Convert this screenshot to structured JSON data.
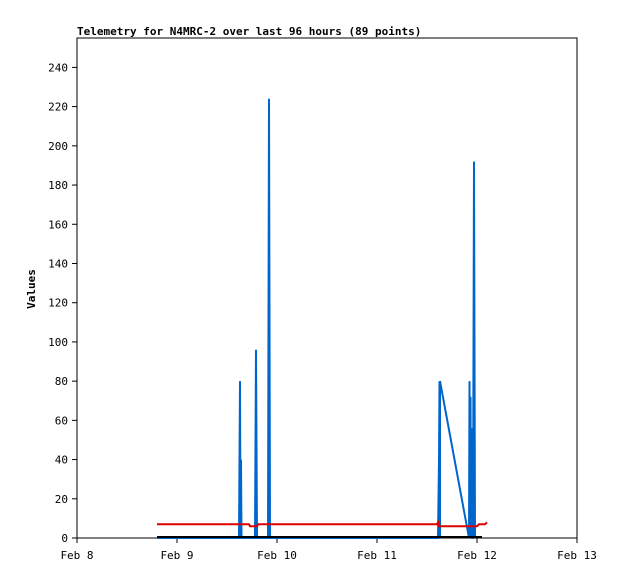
{
  "chart_data": {
    "type": "line",
    "title": "Telemetry for N4MRC-2 over last 96 hours (89 points)",
    "xlabel": "",
    "ylabel": "Values",
    "xlim": [
      "Feb 8",
      "Feb 13"
    ],
    "ylim": [
      0,
      255
    ],
    "x_ticks": [
      "Feb 8",
      "Feb 9",
      "Feb 10",
      "Feb 11",
      "Feb 12",
      "Feb 13"
    ],
    "y_ticks": [
      0,
      20,
      40,
      60,
      80,
      100,
      120,
      140,
      160,
      180,
      200,
      220,
      240
    ],
    "grid": false,
    "legend": "none",
    "series": [
      {
        "color": "#0066cc",
        "points": [
          [
            8.8,
            0
          ],
          [
            9.62,
            0
          ],
          [
            9.63,
            80
          ],
          [
            9.635,
            0
          ],
          [
            9.64,
            40
          ],
          [
            9.645,
            0
          ],
          [
            9.78,
            0
          ],
          [
            9.79,
            96
          ],
          [
            9.8,
            0
          ],
          [
            9.91,
            0
          ],
          [
            9.92,
            224
          ],
          [
            9.93,
            0
          ],
          [
            11.61,
            0
          ],
          [
            11.62,
            40
          ],
          [
            11.625,
            80
          ],
          [
            11.63,
            0
          ],
          [
            11.63,
            80
          ],
          [
            11.92,
            0
          ],
          [
            11.925,
            80
          ],
          [
            11.93,
            0
          ],
          [
            11.935,
            72
          ],
          [
            11.94,
            0
          ],
          [
            11.945,
            56
          ],
          [
            11.95,
            0
          ],
          [
            11.96,
            0
          ],
          [
            11.97,
            192
          ],
          [
            11.98,
            0
          ]
        ]
      },
      {
        "color": "#dd0000",
        "points": [
          [
            8.8,
            7
          ],
          [
            9.72,
            7
          ],
          [
            9.73,
            6
          ],
          [
            9.8,
            6
          ],
          [
            9.81,
            7
          ],
          [
            11.6,
            7
          ],
          [
            11.61,
            8
          ],
          [
            11.62,
            6
          ],
          [
            12.0,
            6
          ],
          [
            12.02,
            7
          ],
          [
            12.08,
            7
          ],
          [
            12.1,
            8
          ]
        ]
      },
      {
        "color": "#000000",
        "points": [
          [
            8.8,
            0.5
          ],
          [
            12.05,
            0.5
          ]
        ]
      }
    ]
  }
}
